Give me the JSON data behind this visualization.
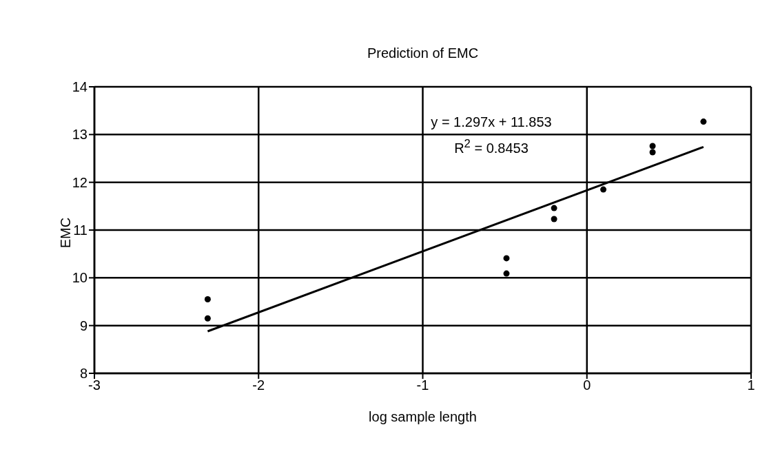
{
  "chart_data": {
    "type": "scatter",
    "title": "Prediction of EMC",
    "xlabel": "log sample length",
    "ylabel": "EMC",
    "xlim": [
      -3,
      1
    ],
    "xticks": [
      -3,
      -2,
      -1,
      0,
      1
    ],
    "ylim": [
      8,
      14
    ],
    "yticks": [
      8,
      9,
      10,
      11,
      12,
      13,
      14
    ],
    "grid": true,
    "annotations": [
      "y = 1.297x + 11.853",
      "R$^{2}$ = 0.8453"
    ],
    "series": [
      {
        "marker": "circle",
        "color": "#000000",
        "x": [
          -2.31,
          -2.31,
          -0.49,
          -0.49,
          -0.2,
          -0.2,
          0.1,
          0.4,
          0.4,
          0.71
        ],
        "values": [
          9.55,
          9.15,
          10.41,
          10.09,
          11.46,
          11.23,
          11.85,
          12.76,
          12.63,
          13.27
        ]
      },
      {
        "type": "line",
        "marker": "none",
        "color": "#000000",
        "x": [
          -2.31,
          0.71
        ],
        "values": [
          8.88,
          12.74
        ]
      }
    ]
  }
}
